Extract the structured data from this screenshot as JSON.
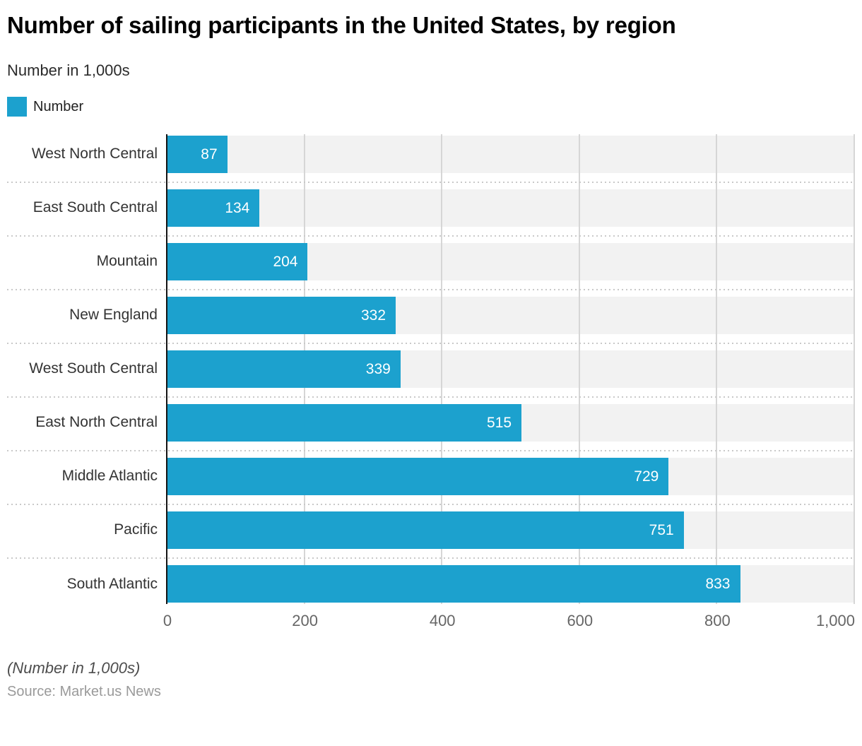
{
  "chart_data": {
    "type": "bar",
    "orientation": "horizontal",
    "title": "Number of sailing participants in the United States, by region",
    "subtitle": "Number in 1,000s",
    "categories": [
      "West North Central",
      "East South Central",
      "Mountain",
      "New England",
      "West South Central",
      "East North Central",
      "Middle Atlantic",
      "Pacific",
      "South Atlantic"
    ],
    "series": [
      {
        "name": "Number",
        "color": "#1CA1CE",
        "values": [
          87,
          134,
          204,
          332,
          339,
          515,
          729,
          751,
          833
        ]
      }
    ],
    "xlim": [
      0,
      1000
    ],
    "x_ticks": [
      {
        "value": 0,
        "label": "0"
      },
      {
        "value": 200,
        "label": "200"
      },
      {
        "value": 400,
        "label": "400"
      },
      {
        "value": 600,
        "label": "600"
      },
      {
        "value": 800,
        "label": "800"
      },
      {
        "value": 1000,
        "label": "1,000"
      }
    ],
    "grid": "vertical",
    "legend_position": "top-left",
    "bar_label_color": "#ffffff",
    "track_color": "#f2f2f2"
  },
  "footer": {
    "note": "(Number in 1,000s)",
    "source": "Source: Market.us News"
  }
}
